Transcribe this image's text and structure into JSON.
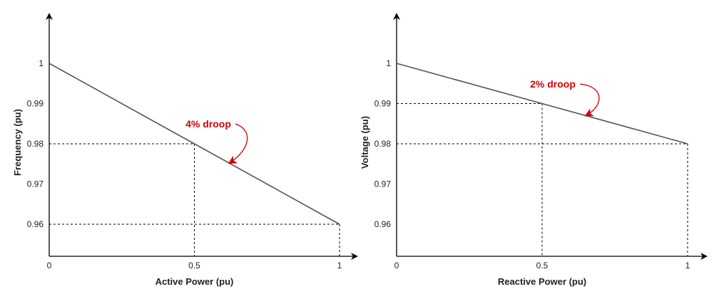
{
  "chart_data": [
    {
      "type": "line",
      "xlabel": "Active Power (pu)",
      "ylabel": "Frequency (pu)",
      "xlim": [
        0,
        1.05
      ],
      "ylim": [
        0.951,
        1.012
      ],
      "x_ticks": [
        "0",
        "0.5",
        "1"
      ],
      "y_ticks": [
        "1",
        "0.99",
        "0.98",
        "0.97",
        "0.96"
      ],
      "y_tick_values": [
        1,
        0.99,
        0.98,
        0.97,
        0.96
      ],
      "x_tick_values": [
        0,
        0.5,
        1
      ],
      "series": [
        {
          "x": [
            0,
            1
          ],
          "y": [
            1,
            0.96
          ],
          "color": "#555555"
        }
      ],
      "reference_points": [
        {
          "x": 0.5,
          "y": 0.98
        },
        {
          "x": 1,
          "y": 0.96
        }
      ],
      "annotation": {
        "text": "4% droop",
        "color": "#d40000",
        "points_to": {
          "x": 0.62,
          "y": 0.9752
        }
      },
      "grid": false
    },
    {
      "type": "line",
      "xlabel": "Reactive Power (pu)",
      "ylabel": "Voltage (pu)",
      "xlim": [
        0,
        1.05
      ],
      "ylim": [
        0.951,
        1.012
      ],
      "x_ticks": [
        "0",
        "0.5",
        "1"
      ],
      "y_ticks": [
        "1",
        "0.99",
        "0.98",
        "0.97",
        "0.96"
      ],
      "y_tick_values": [
        1,
        0.99,
        0.98,
        0.97,
        0.96
      ],
      "x_tick_values": [
        0,
        0.5,
        1
      ],
      "series": [
        {
          "x": [
            0,
            1
          ],
          "y": [
            1,
            0.98
          ],
          "color": "#555555"
        }
      ],
      "reference_points": [
        {
          "x": 0.5,
          "y": 0.99
        },
        {
          "x": 1,
          "y": 0.98
        }
      ],
      "annotation": {
        "text": "2% droop",
        "color": "#d40000",
        "points_to": {
          "x": 0.65,
          "y": 0.987
        }
      },
      "grid": false
    }
  ]
}
